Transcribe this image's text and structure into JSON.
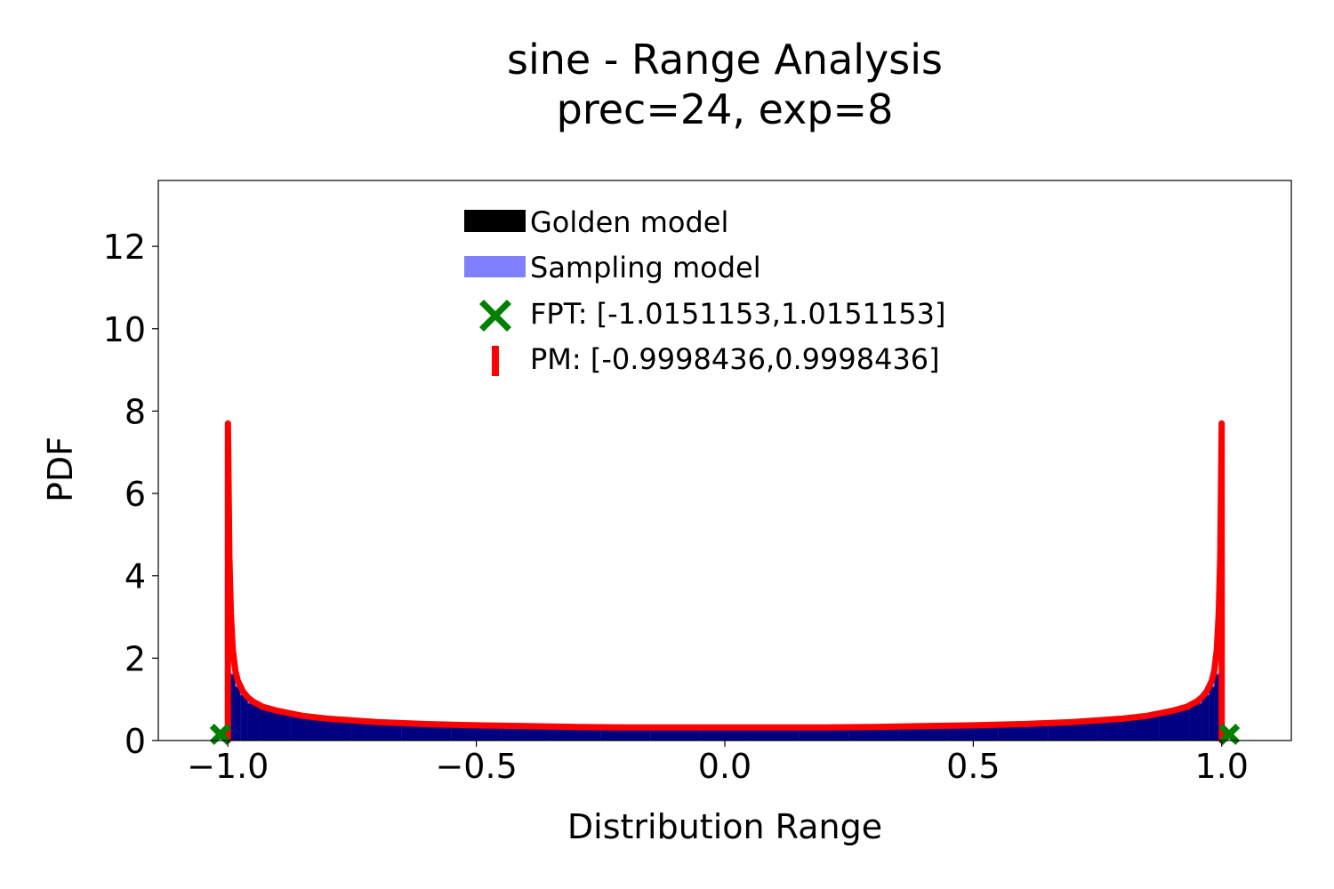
{
  "chart_data": {
    "type": "area",
    "title": "sine - Range Analysis",
    "subtitle": "prec=24, exp=8",
    "xlabel": "Distribution Range",
    "ylabel": "PDF",
    "xlim": [
      -1.14,
      1.14
    ],
    "ylim": [
      0,
      13.6
    ],
    "xticks": [
      -1.0,
      -0.5,
      0.0,
      0.5,
      1.0
    ],
    "xtick_labels": [
      "−1.0",
      "−0.5",
      "0.0",
      "0.5",
      "1.0"
    ],
    "yticks": [
      0,
      2,
      4,
      6,
      8,
      10,
      12
    ],
    "ytick_labels": [
      "0",
      "2",
      "4",
      "6",
      "8",
      "10",
      "12"
    ],
    "grid": false,
    "legend_position": "top-center",
    "series": [
      {
        "name": "Golden model",
        "kind": "histogram",
        "color": "#000000",
        "x": [
          -1.0,
          -0.99,
          -0.98,
          -0.97,
          -0.95,
          -0.92,
          -0.9,
          -0.85,
          -0.8,
          -0.7,
          -0.6,
          -0.5,
          -0.4,
          -0.3,
          -0.2,
          -0.1,
          0.0,
          0.1,
          0.2,
          0.3,
          0.4,
          0.5,
          0.6,
          0.7,
          0.8,
          0.85,
          0.9,
          0.92,
          0.95,
          0.97,
          0.98,
          0.99,
          1.0
        ],
        "y": [
          1.8,
          1.6,
          1.3,
          1.1,
          0.9,
          0.75,
          0.7,
          0.6,
          0.5,
          0.45,
          0.4,
          0.36,
          0.34,
          0.33,
          0.32,
          0.32,
          0.32,
          0.32,
          0.32,
          0.33,
          0.34,
          0.36,
          0.4,
          0.45,
          0.5,
          0.6,
          0.7,
          0.75,
          0.9,
          1.1,
          1.3,
          1.6,
          1.8
        ]
      },
      {
        "name": "Sampling model",
        "kind": "histogram",
        "color": "#8080ff",
        "x": [
          -1.0,
          -0.99,
          -0.98,
          -0.97,
          -0.95,
          -0.92,
          -0.9,
          -0.85,
          -0.8,
          -0.7,
          -0.6,
          -0.5,
          -0.4,
          -0.3,
          -0.2,
          -0.1,
          0.0,
          0.1,
          0.2,
          0.3,
          0.4,
          0.5,
          0.6,
          0.7,
          0.8,
          0.85,
          0.9,
          0.92,
          0.95,
          0.97,
          0.98,
          0.99,
          1.0
        ],
        "y": [
          1.85,
          1.65,
          1.35,
          1.15,
          0.95,
          0.8,
          0.72,
          0.62,
          0.55,
          0.48,
          0.42,
          0.38,
          0.36,
          0.35,
          0.34,
          0.34,
          0.34,
          0.34,
          0.34,
          0.35,
          0.36,
          0.38,
          0.42,
          0.48,
          0.55,
          0.62,
          0.72,
          0.8,
          0.95,
          1.15,
          1.35,
          1.65,
          1.85
        ]
      },
      {
        "name": "PM: [-0.9998436,0.9998436]",
        "kind": "line",
        "color": "#ff0000",
        "x": [
          -1.0,
          -0.9998,
          -0.997,
          -0.994,
          -0.99,
          -0.985,
          -0.98,
          -0.97,
          -0.96,
          -0.95,
          -0.93,
          -0.9,
          -0.85,
          -0.8,
          -0.7,
          -0.6,
          -0.5,
          -0.4,
          -0.3,
          -0.2,
          -0.1,
          0.0,
          0.1,
          0.2,
          0.3,
          0.4,
          0.5,
          0.6,
          0.7,
          0.8,
          0.85,
          0.9,
          0.93,
          0.95,
          0.96,
          0.97,
          0.98,
          0.985,
          0.99,
          0.994,
          0.997,
          0.9998,
          1.0
        ],
        "y": [
          0.0,
          7.7,
          4.5,
          3.1,
          2.2,
          1.7,
          1.45,
          1.2,
          1.05,
          0.95,
          0.82,
          0.72,
          0.6,
          0.53,
          0.45,
          0.4,
          0.37,
          0.35,
          0.33,
          0.32,
          0.32,
          0.32,
          0.32,
          0.32,
          0.33,
          0.35,
          0.37,
          0.4,
          0.45,
          0.53,
          0.6,
          0.72,
          0.82,
          0.95,
          1.05,
          1.2,
          1.45,
          1.7,
          2.2,
          3.1,
          4.5,
          7.7,
          0.0
        ]
      },
      {
        "name": "FPT: [-1.0151153,1.0151153]",
        "kind": "scatter",
        "color": "#008000",
        "marker": "X",
        "x": [
          -1.0151153,
          1.0151153
        ],
        "y": [
          0.15,
          0.15
        ]
      }
    ]
  }
}
